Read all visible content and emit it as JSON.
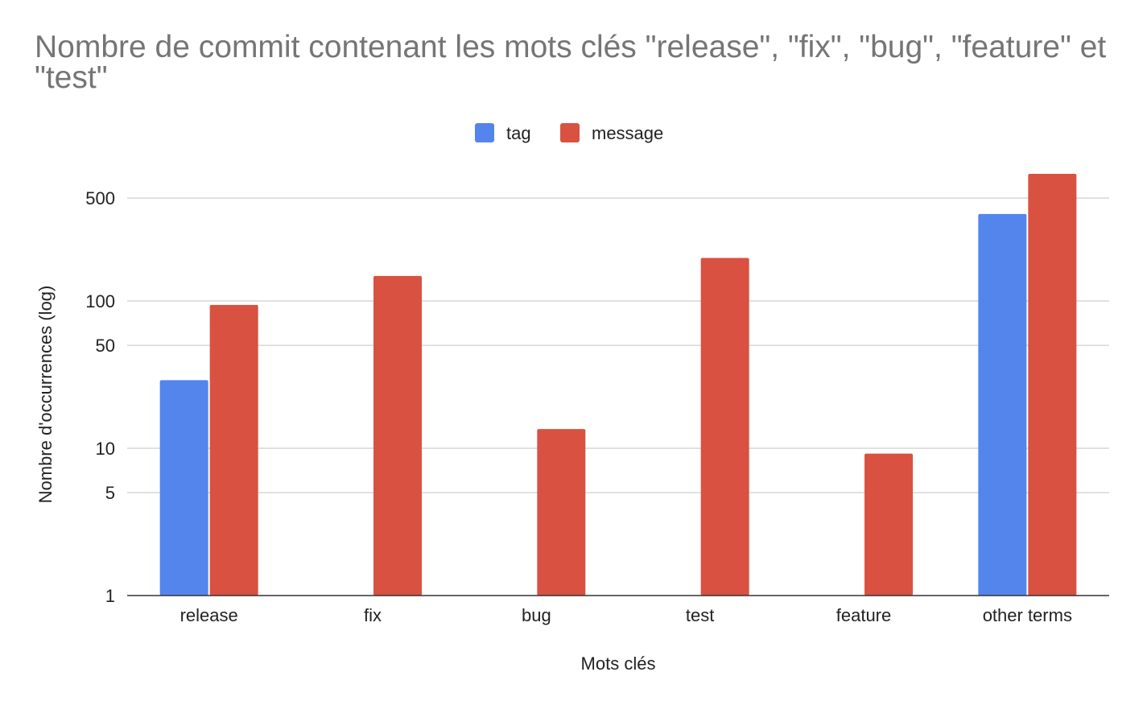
{
  "chart_data": {
    "type": "bar",
    "title": "Nombre de commit contenant les mots clés \"release\", \"fix\", \"bug\", \"feature\" et \"test\"",
    "xlabel": "Mots clés",
    "ylabel": "Nombre d'occurrences (log)",
    "yscale": "log",
    "ylim": [
      1,
      700
    ],
    "yticks": [
      1,
      5,
      10,
      50,
      100,
      500
    ],
    "grid": true,
    "legend_position": "top",
    "categories": [
      "release",
      "fix",
      "bug",
      "test",
      "feature",
      "other terms"
    ],
    "series": [
      {
        "name": "tag",
        "color": "#5385EC",
        "values": [
          29,
          null,
          null,
          null,
          null,
          390
        ]
      },
      {
        "name": "message",
        "color": "#D95140",
        "values": [
          94,
          148,
          13.5,
          196,
          9.2,
          730
        ]
      }
    ]
  }
}
